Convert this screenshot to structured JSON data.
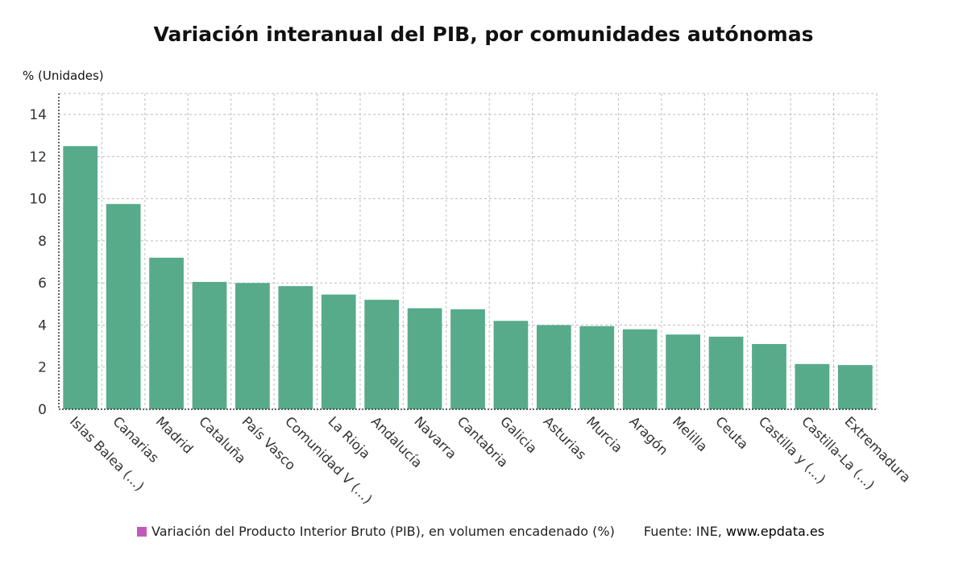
{
  "chart_data": {
    "type": "bar",
    "title": "Variación interanual del PIB, por comunidades autónomas",
    "ylabel": "% (Unidades)",
    "xlabel": "",
    "ylim": [
      0,
      15
    ],
    "yticks": [
      0,
      2,
      4,
      6,
      8,
      10,
      12,
      14
    ],
    "grid": true,
    "legend_position": "bottom",
    "categories": [
      "Islas Balea (...)",
      "Canarias",
      "Madrid",
      "Cataluña",
      "País Vasco",
      "Comunidad V (...)",
      "La Rioja",
      "Andalucía",
      "Navarra",
      "Cantabria",
      "Galicia",
      "Asturias",
      "Murcia",
      "Aragón",
      "Melilla",
      "Ceuta",
      "Castilla y (...)",
      "Castilla-La (...)",
      "Extremadura"
    ],
    "series": [
      {
        "name": "Variación del Producto Interior Bruto (PIB), en volumen encadenado (%)",
        "values": [
          12.5,
          9.75,
          7.2,
          6.05,
          6.0,
          5.85,
          5.45,
          5.2,
          4.8,
          4.75,
          4.2,
          4.0,
          3.95,
          3.8,
          3.55,
          3.45,
          3.1,
          2.15,
          2.1
        ]
      }
    ]
  },
  "legend": {
    "label": "Variación del Producto Interior Bruto (PIB), en volumen encadenado (%)",
    "swatch_color": "#c05ab8"
  },
  "source": {
    "prefix": "Fuente: INE, ",
    "site": "www.epdata.es"
  },
  "colors": {
    "bar": "#57ab8b",
    "grid": "#bdbdbd",
    "axis": "#333333"
  }
}
